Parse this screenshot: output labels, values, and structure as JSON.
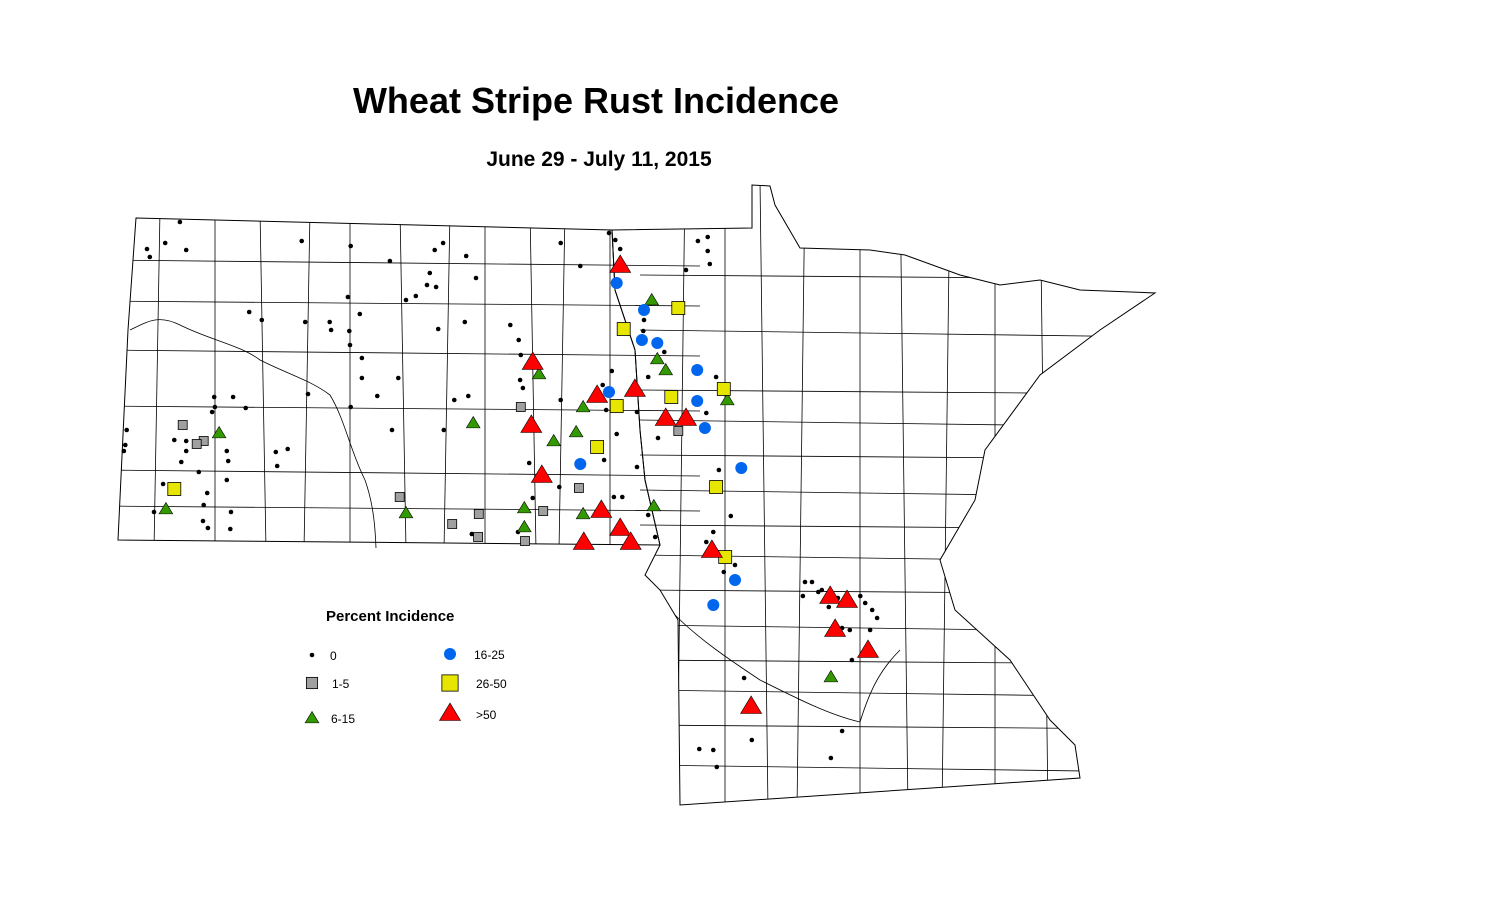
{
  "title": "Wheat Stripe Rust Incidence",
  "subtitle": "June 29 - July 11, 2015",
  "legend": {
    "title": "Percent Incidence",
    "items": [
      {
        "key": "0",
        "label": "0",
        "shape": "dot",
        "color": "#000000"
      },
      {
        "key": "1-5",
        "label": "1-5",
        "shape": "square",
        "color": "#a0a0a0"
      },
      {
        "key": "6-15",
        "label": "6-15",
        "shape": "triangle",
        "color": "#339900"
      },
      {
        "key": "16-25",
        "label": "16-25",
        "shape": "circle",
        "color": "#0066ee"
      },
      {
        "key": "26-50",
        "label": "26-50",
        "shape": "square",
        "color": "#e6e600"
      },
      {
        "key": ">50",
        "label": ">50",
        "shape": "triangle",
        "color": "#ff0000"
      }
    ]
  },
  "chart_data": {
    "type": "map",
    "region": "North Dakota and Minnesota, by county",
    "observations": {
      ">50": [
        [
          -96.98,
          48.6
        ],
        [
          -98.23,
          47.63
        ],
        [
          -97.31,
          47.3
        ],
        [
          -96.77,
          47.36
        ],
        [
          -98.25,
          47.0
        ],
        [
          -96.33,
          47.07
        ],
        [
          -96.04,
          47.07
        ],
        [
          -98.1,
          46.5
        ],
        [
          -97.25,
          46.15
        ],
        [
          -96.98,
          45.97
        ],
        [
          -97.5,
          45.83
        ],
        [
          -96.83,
          45.83
        ],
        [
          -95.67,
          45.75
        ],
        [
          -93.98,
          45.29
        ],
        [
          -93.74,
          45.25
        ],
        [
          -93.91,
          44.96
        ],
        [
          -93.44,
          44.75
        ],
        [
          -95.11,
          44.19
        ]
      ],
      "16-25": [
        [
          -97.03,
          48.42
        ],
        [
          -96.64,
          48.15
        ],
        [
          -96.67,
          47.85
        ],
        [
          -96.45,
          47.82
        ],
        [
          -95.88,
          47.55
        ],
        [
          -97.14,
          47.33
        ],
        [
          -95.88,
          47.24
        ],
        [
          -95.77,
          46.97
        ],
        [
          -97.55,
          46.61
        ],
        [
          -95.25,
          46.57
        ],
        [
          -95.34,
          45.45
        ],
        [
          -95.65,
          45.2
        ]
      ],
      "26-50": [
        [
          -96.15,
          48.17
        ],
        [
          -96.93,
          47.96
        ],
        [
          -95.5,
          47.36
        ],
        [
          -96.25,
          47.28
        ],
        [
          -97.03,
          47.19
        ],
        [
          -97.31,
          46.78
        ],
        [
          -95.61,
          46.38
        ],
        [
          -95.48,
          45.68
        ],
        [
          -103.35,
          46.36
        ]
      ],
      "6-15": [
        [
          -96.53,
          48.25
        ],
        [
          -96.45,
          47.66
        ],
        [
          -98.14,
          47.51
        ],
        [
          -96.33,
          47.55
        ],
        [
          -95.45,
          47.25
        ],
        [
          -97.51,
          47.18
        ],
        [
          -99.08,
          47.02
        ],
        [
          -97.61,
          46.93
        ],
        [
          -97.93,
          46.84
        ],
        [
          -102.71,
          46.92
        ],
        [
          -100.04,
          46.12
        ],
        [
          -98.35,
          46.17
        ],
        [
          -97.51,
          46.11
        ],
        [
          -96.5,
          46.19
        ],
        [
          -98.35,
          45.98
        ],
        [
          -103.47,
          46.16
        ],
        [
          -93.97,
          44.48
        ]
      ],
      "1-5": [
        [
          -103.23,
          47.0
        ],
        [
          -102.93,
          46.84
        ],
        [
          -103.03,
          46.81
        ],
        [
          -98.4,
          47.18
        ],
        [
          -96.15,
          46.94
        ],
        [
          -100.13,
          46.28
        ],
        [
          -97.57,
          46.37
        ],
        [
          -99.0,
          46.11
        ],
        [
          -98.08,
          46.14
        ],
        [
          -99.38,
          46.01
        ],
        [
          -99.01,
          45.88
        ],
        [
          -98.34,
          45.84
        ]
      ],
      "0": [
        [
          -103.27,
          49.03
        ],
        [
          -103.74,
          48.76
        ],
        [
          -103.7,
          48.68
        ],
        [
          -103.48,
          48.82
        ],
        [
          -103.18,
          48.75
        ],
        [
          -101.53,
          48.84
        ],
        [
          -100.83,
          48.79
        ],
        [
          -100.27,
          48.64
        ],
        [
          -99.63,
          48.75
        ],
        [
          -99.51,
          48.82
        ],
        [
          -99.18,
          48.69
        ],
        [
          -99.7,
          48.52
        ],
        [
          -99.04,
          48.47
        ],
        [
          -99.74,
          48.4
        ],
        [
          -99.61,
          48.38
        ],
        [
          -99.9,
          48.29
        ],
        [
          -100.04,
          48.25
        ],
        [
          -100.87,
          48.28
        ],
        [
          -100.7,
          48.11
        ],
        [
          -100.85,
          47.94
        ],
        [
          -100.84,
          47.8
        ],
        [
          -101.13,
          48.03
        ],
        [
          -101.11,
          47.95
        ],
        [
          -101.48,
          48.03
        ],
        [
          -102.28,
          48.13
        ],
        [
          -102.1,
          48.05
        ],
        [
          -99.58,
          47.96
        ],
        [
          -99.2,
          48.03
        ],
        [
          -98.55,
          48.0
        ],
        [
          -98.43,
          47.85
        ],
        [
          -98.4,
          47.7
        ],
        [
          -97.83,
          48.82
        ],
        [
          -97.55,
          48.59
        ],
        [
          -97.14,
          48.92
        ],
        [
          -97.05,
          48.85
        ],
        [
          -96.98,
          48.76
        ],
        [
          -95.87,
          48.84
        ],
        [
          -95.73,
          48.88
        ],
        [
          -95.73,
          48.74
        ],
        [
          -95.7,
          48.61
        ],
        [
          -96.04,
          48.55
        ],
        [
          -96.64,
          48.05
        ],
        [
          -96.65,
          47.94
        ],
        [
          -96.35,
          47.73
        ],
        [
          -97.1,
          47.54
        ],
        [
          -96.58,
          47.48
        ],
        [
          -95.61,
          47.48
        ],
        [
          -100.67,
          47.67
        ],
        [
          -100.67,
          47.47
        ],
        [
          -100.15,
          47.47
        ],
        [
          -100.45,
          47.29
        ],
        [
          -100.83,
          47.18
        ],
        [
          -101.44,
          47.31
        ],
        [
          -102.78,
          47.28
        ],
        [
          -102.77,
          47.18
        ],
        [
          -102.51,
          47.28
        ],
        [
          -102.33,
          47.17
        ],
        [
          -102.81,
          47.13
        ],
        [
          -104.03,
          46.95
        ],
        [
          -104.05,
          46.8
        ],
        [
          -104.07,
          46.74
        ],
        [
          -103.35,
          46.85
        ],
        [
          -103.18,
          46.84
        ],
        [
          -103.18,
          46.74
        ],
        [
          -103.25,
          46.63
        ],
        [
          -103.0,
          46.53
        ],
        [
          -102.6,
          46.74
        ],
        [
          -102.58,
          46.64
        ],
        [
          -101.9,
          46.73
        ],
        [
          -101.73,
          46.76
        ],
        [
          -101.88,
          46.59
        ],
        [
          -100.24,
          46.95
        ],
        [
          -99.5,
          46.95
        ],
        [
          -99.15,
          47.29
        ],
        [
          -99.35,
          47.25
        ],
        [
          -98.41,
          47.45
        ],
        [
          -98.37,
          47.37
        ],
        [
          -97.83,
          47.25
        ],
        [
          -97.23,
          47.4
        ],
        [
          -97.18,
          47.15
        ],
        [
          -96.74,
          47.13
        ],
        [
          -97.03,
          46.91
        ],
        [
          -97.21,
          46.65
        ],
        [
          -96.74,
          46.58
        ],
        [
          -96.44,
          46.87
        ],
        [
          -95.75,
          47.12
        ],
        [
          -98.28,
          46.62
        ],
        [
          -98.23,
          46.27
        ],
        [
          -97.85,
          46.38
        ],
        [
          -97.07,
          46.28
        ],
        [
          -96.95,
          46.28
        ],
        [
          -96.58,
          46.1
        ],
        [
          -96.48,
          45.88
        ],
        [
          -95.57,
          46.55
        ],
        [
          -95.4,
          46.09
        ],
        [
          -95.65,
          45.93
        ],
        [
          -95.75,
          45.83
        ],
        [
          -95.5,
          45.53
        ],
        [
          -95.34,
          45.6
        ],
        [
          -103.51,
          46.41
        ],
        [
          -102.88,
          46.32
        ],
        [
          -102.93,
          46.2
        ],
        [
          -102.6,
          46.45
        ],
        [
          -102.94,
          46.04
        ],
        [
          -102.87,
          45.97
        ],
        [
          -102.54,
          46.13
        ],
        [
          -102.55,
          45.96
        ],
        [
          -103.64,
          46.13
        ],
        [
          -99.1,
          45.91
        ],
        [
          -98.44,
          45.93
        ],
        [
          -94.34,
          45.43
        ],
        [
          -94.37,
          45.29
        ],
        [
          -94.24,
          45.43
        ],
        [
          -94.15,
          45.33
        ],
        [
          -94.1,
          45.35
        ],
        [
          -94.04,
          45.25
        ],
        [
          -93.87,
          45.27
        ],
        [
          -94.0,
          45.18
        ],
        [
          -93.55,
          45.29
        ],
        [
          -93.48,
          45.22
        ],
        [
          -93.38,
          45.15
        ],
        [
          -93.31,
          45.07
        ],
        [
          -93.41,
          44.95
        ],
        [
          -93.81,
          44.97
        ],
        [
          -93.7,
          44.95
        ],
        [
          -93.67,
          44.65
        ],
        [
          -93.81,
          43.94
        ],
        [
          -93.97,
          43.67
        ],
        [
          -95.1,
          43.85
        ],
        [
          -95.85,
          43.76
        ],
        [
          -95.65,
          43.75
        ],
        [
          -95.6,
          43.58
        ],
        [
          -95.21,
          44.47
        ]
      ]
    }
  }
}
